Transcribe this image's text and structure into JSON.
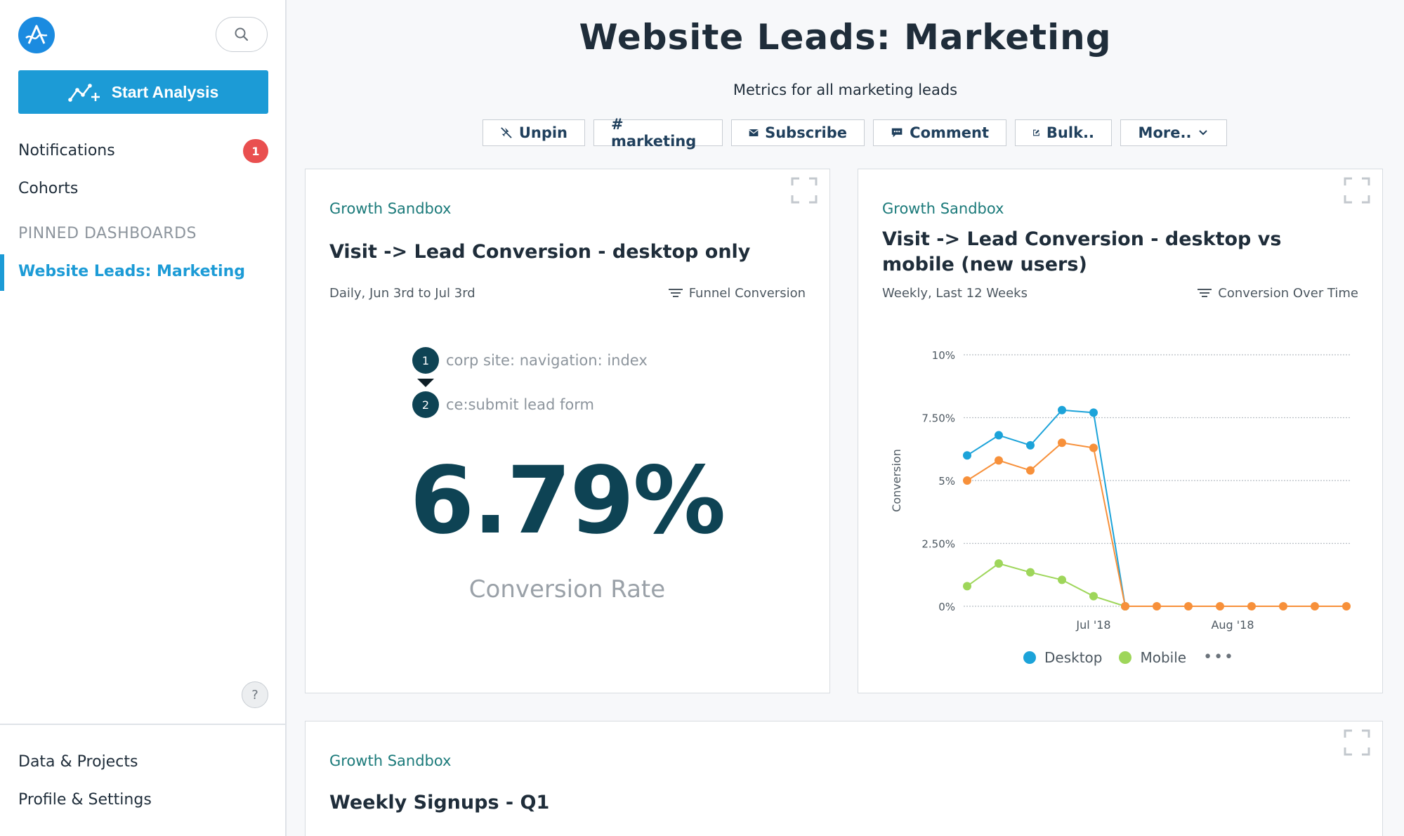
{
  "sidebar": {
    "start_label": "Start Analysis",
    "notifications_label": "Notifications",
    "notifications_count": "1",
    "cohorts_label": "Cohorts",
    "pinned_title": "PINNED DASHBOARDS",
    "pinned_item": "Website Leads: Marketing",
    "help": "?",
    "data_projects": "Data & Projects",
    "profile_settings": "Profile & Settings"
  },
  "header": {
    "title": "Website Leads: Marketing",
    "subtitle": "Metrics for all marketing leads",
    "buttons": {
      "unpin": "Unpin",
      "tag": "# marketing",
      "subscribe": "Subscribe",
      "comment": "Comment",
      "bulk": "Bulk..",
      "more": "More.."
    }
  },
  "cards": [
    {
      "project": "Growth Sandbox",
      "title": "Visit -> Lead Conversion - desktop only",
      "range": "Daily, Jun 3rd to Jul 3rd",
      "chart_type": "Funnel Conversion",
      "steps": [
        {
          "num": "1",
          "label": "corp site: navigation: index"
        },
        {
          "num": "2",
          "label": "ce:submit lead form"
        }
      ],
      "value": "6.79%",
      "value_label": "Conversion Rate"
    },
    {
      "project": "Growth Sandbox",
      "title": "Visit -> Lead Conversion - desktop vs mobile (new users)",
      "range": "Weekly, Last 12 Weeks",
      "chart_type": "Conversion Over Time",
      "legend": {
        "desktop": "Desktop",
        "mobile": "Mobile",
        "more": "•••"
      }
    },
    {
      "project": "Growth Sandbox",
      "title": "Weekly Signups - Q1"
    }
  ],
  "colors": {
    "accent": "#1c9bd6",
    "desktop": "#1ca3d9",
    "mobile": "#9ed65a",
    "orange": "#f7903a",
    "dark": "#0e4354",
    "badge": "#e94f4f"
  },
  "chart_data": {
    "type": "line",
    "ylabel": "Conversion",
    "y_ticks": [
      "10%",
      "7.50%",
      "5%",
      "2.50%",
      "0%"
    ],
    "ylim": [
      0,
      10
    ],
    "x_labels": [
      "Jul '18",
      "Aug '18"
    ],
    "x_label_positions": [
      4,
      8.4
    ],
    "grid": true,
    "legend_position": "bottom",
    "series": [
      {
        "name": "Desktop",
        "color": "#1ca3d9",
        "values": [
          6.0,
          6.8,
          6.4,
          7.8,
          7.7,
          0
        ]
      },
      {
        "name": "",
        "color": "#f7903a",
        "values": [
          5.0,
          5.8,
          5.4,
          6.5,
          6.3,
          0,
          0,
          0,
          0,
          0,
          0,
          0,
          0
        ]
      },
      {
        "name": "Mobile",
        "color": "#9ed65a",
        "values": [
          0.8,
          1.7,
          1.35,
          1.05,
          0.4,
          0
        ]
      }
    ]
  }
}
